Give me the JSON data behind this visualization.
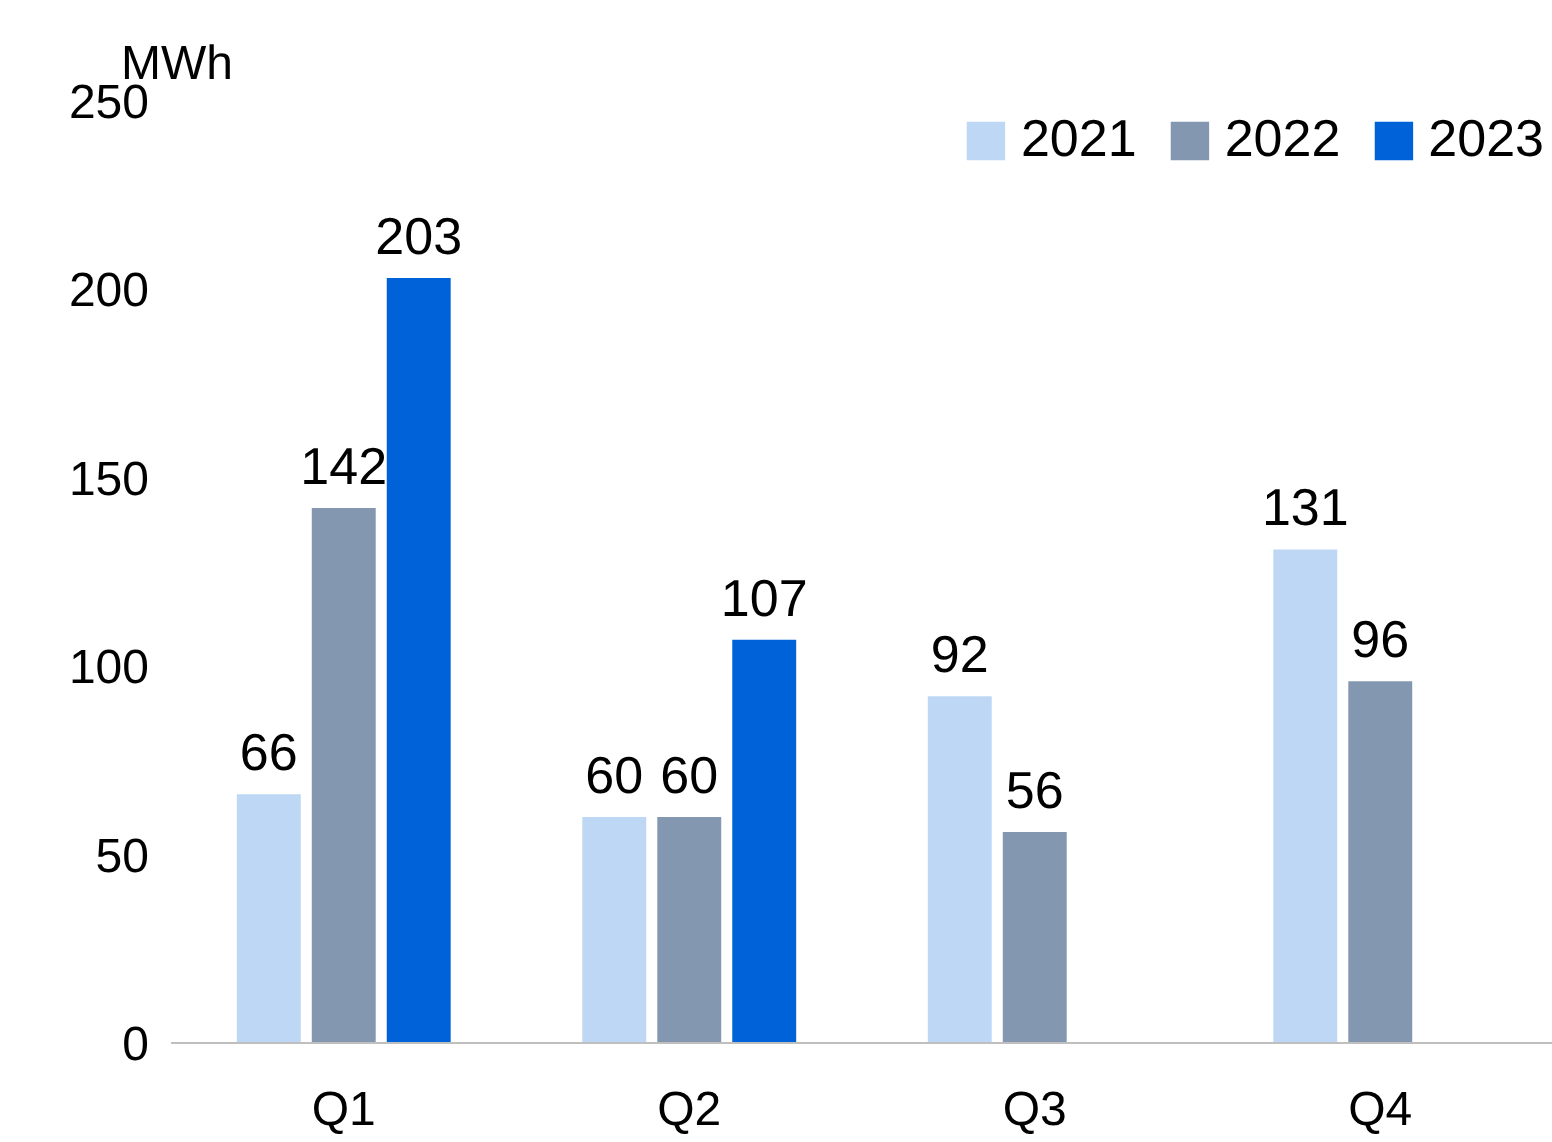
{
  "chart_data": {
    "type": "bar",
    "ylabel": "MWh",
    "categories": [
      "Q1",
      "Q2",
      "Q3",
      "Q4"
    ],
    "series": [
      {
        "name": "2021",
        "color": "#bdd7f5",
        "values": [
          66,
          60,
          92,
          131
        ]
      },
      {
        "name": "2022",
        "color": "#8497b0",
        "values": [
          142,
          60,
          56,
          96
        ]
      },
      {
        "name": "2023",
        "color": "#0062d9",
        "values": [
          203,
          107,
          null,
          null
        ]
      }
    ],
    "ylim": [
      0,
      250
    ],
    "yticks": [
      0,
      50,
      100,
      150,
      200,
      250
    ],
    "grid": false,
    "legend": "top right",
    "data_labels": true
  }
}
